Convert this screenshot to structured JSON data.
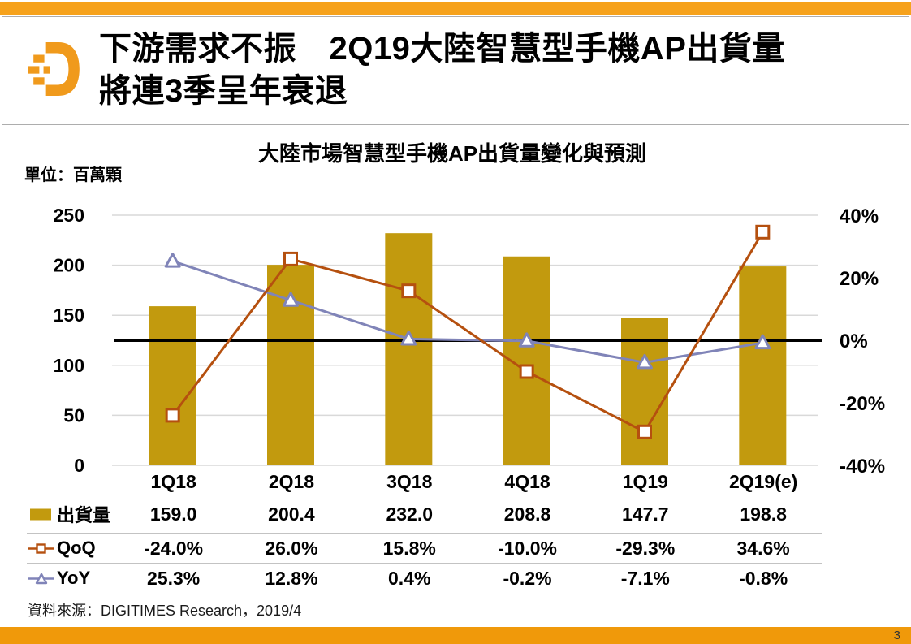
{
  "header": {
    "title_line1": "下游需求不振　2Q19大陸智慧型手機AP出貨量",
    "title_line2": "將連3季呈年衰退",
    "logo_icon": "digitimes-d-logo"
  },
  "chart_data": {
    "type": "bar",
    "subtype": "combo-bar-and-lines",
    "title": "大陸市場智慧型手機AP出貨量變化與預測",
    "unit_label": "單位：百萬顆",
    "categories": [
      "1Q18",
      "2Q18",
      "3Q18",
      "4Q18",
      "1Q19",
      "2Q19(e)"
    ],
    "series": [
      {
        "key": "shipments",
        "name": "出貨量",
        "type": "bar",
        "axis": "left",
        "color": "#C29A0E",
        "legend_icon": "gold-square-swatch",
        "values": [
          159.0,
          200.4,
          232.0,
          208.8,
          147.7,
          198.8
        ],
        "display": [
          "159.0",
          "200.4",
          "232.0",
          "208.8",
          "147.7",
          "198.8"
        ]
      },
      {
        "key": "qoq",
        "name": "QoQ",
        "type": "line",
        "marker": "square",
        "axis": "right",
        "color": "#B5500F",
        "legend_icon": "line-with-hollow-square-marker",
        "values": [
          -24.0,
          26.0,
          15.8,
          -10.0,
          -29.3,
          34.6
        ],
        "display": [
          "-24.0%",
          "26.0%",
          "15.8%",
          "-10.0%",
          "-29.3%",
          "34.6%"
        ]
      },
      {
        "key": "yoy",
        "name": "YoY",
        "type": "line",
        "marker": "triangle",
        "axis": "right",
        "color": "#8084B8",
        "legend_icon": "line-with-hollow-triangle-marker",
        "values": [
          25.3,
          12.8,
          0.4,
          -0.2,
          -7.1,
          -0.8
        ],
        "display": [
          "25.3%",
          "12.8%",
          "0.4%",
          "-0.2%",
          "-7.1%",
          "-0.8%"
        ]
      }
    ],
    "left_axis": {
      "min": 0,
      "max": 250,
      "tick_values": [
        250,
        200,
        150,
        100,
        50,
        0
      ],
      "ticks": [
        "250",
        "200",
        "150",
        "100",
        "50",
        "0"
      ]
    },
    "right_axis": {
      "min": -40,
      "max": 40,
      "tick_values": [
        40,
        20,
        0,
        -20,
        -40
      ],
      "ticks": [
        "40%",
        "20%",
        "0%",
        "-20%",
        "-40%"
      ]
    },
    "grid": true,
    "zero_line": true,
    "legend_position": "table-left"
  },
  "footer": {
    "source": "資料來源：DIGITIMES Research，2019/4",
    "page_number": "3"
  },
  "colors": {
    "accent_top": "#F6A21C",
    "accent_bottom": "#F0990A",
    "logo_orange": "#F09A1C",
    "bar_gold": "#C29A0E",
    "qoq_line": "#B5500F",
    "yoy_line": "#8084B8",
    "grid": "#D9D9D9",
    "zero_line": "#000000",
    "frame_border": "#ADADAD"
  }
}
